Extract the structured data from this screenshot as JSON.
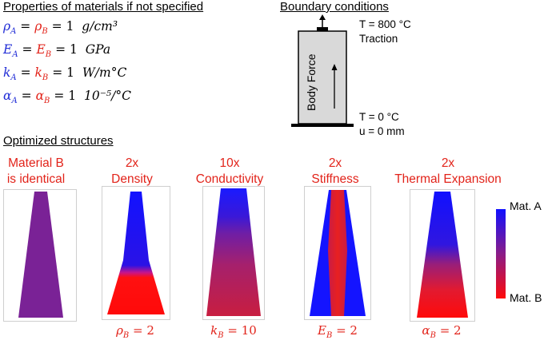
{
  "properties": {
    "title": "Properties of materials if not specified",
    "rows": [
      {
        "a": "ρ",
        "b": "ρ",
        "rhs": "= 1",
        "unit": "g/cm³"
      },
      {
        "a": "E",
        "b": "E",
        "rhs": "= 1",
        "unit": "GPa"
      },
      {
        "a": "k",
        "b": "k",
        "rhs": "= 1",
        "unit": "W/m°C"
      },
      {
        "a": "α",
        "b": "α",
        "rhs": "= 1",
        "unit": "10⁻⁵/°C"
      }
    ],
    "sub_a": "A",
    "sub_b": "B",
    "equals": "="
  },
  "boundary": {
    "title": "Boundary conditions",
    "top_temp": "T = 800 °C",
    "top_load": "Traction",
    "body_force": "Body Force",
    "bottom_temp": "T = 0 °C",
    "bottom_disp": "u = 0 mm"
  },
  "optimized": {
    "title": "Optimized structures",
    "columns": [
      {
        "title_1": "Material B",
        "title_2": "is identical",
        "symbol": "",
        "sub": "",
        "value": ""
      },
      {
        "title_1": "2x",
        "title_2": "Density",
        "symbol": "ρ",
        "sub": "B",
        "value": " = 2"
      },
      {
        "title_1": "10x",
        "title_2": "Conductivity",
        "symbol": "k",
        "sub": "B",
        "value": " = 10"
      },
      {
        "title_1": "2x",
        "title_2": "Stiffness",
        "symbol": "E",
        "sub": "B",
        "value": " = 2"
      },
      {
        "title_1": "2x",
        "title_2": "Thermal Expansion",
        "symbol": "α",
        "sub": "B",
        "value": " = 2"
      }
    ]
  },
  "legend": {
    "top_label": "Mat. A",
    "bottom_label": "Mat. B",
    "color_a": "#1010ff",
    "color_b": "#ff0a0a"
  },
  "colors": {
    "blue_text": "#1f2bd6",
    "red_text": "#e2231a",
    "purple": "#7a2296"
  }
}
